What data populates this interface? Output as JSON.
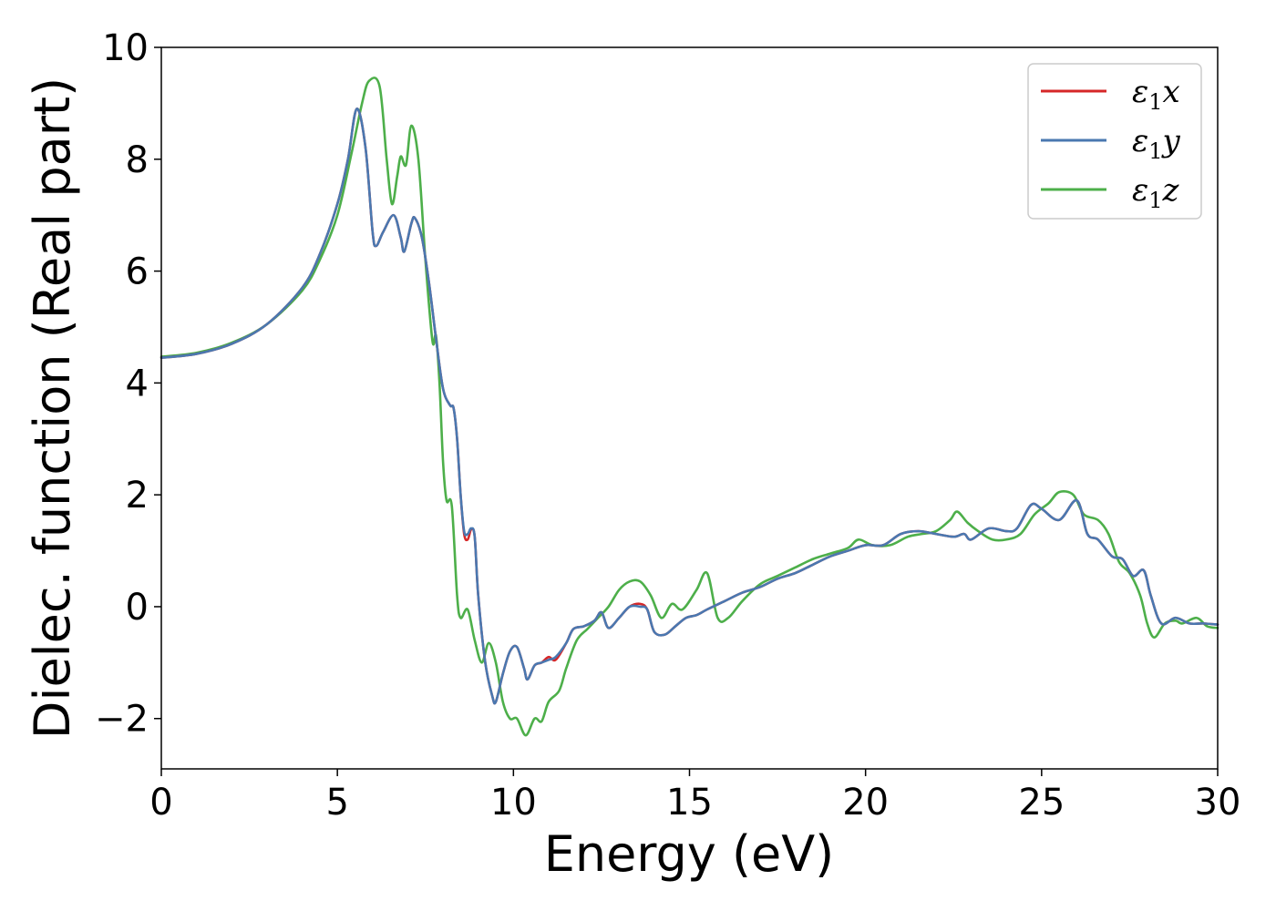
{
  "chart_data": {
    "type": "line",
    "xlabel": "Energy (eV)",
    "ylabel": "Dielec. function (Real part)",
    "xlim": [
      0,
      30
    ],
    "ylim": [
      -2.9,
      10
    ],
    "xticks": [
      0,
      5,
      10,
      15,
      20,
      25,
      30
    ],
    "yticks": [
      -2,
      0,
      2,
      4,
      6,
      8,
      10
    ],
    "xtick_labels": [
      "0",
      "5",
      "10",
      "15",
      "20",
      "25",
      "30"
    ],
    "ytick_labels": [
      "−2",
      "0",
      "2",
      "4",
      "6",
      "8",
      "10"
    ],
    "grid": false,
    "legend_position": "top-right",
    "series": [
      {
        "name": "ε",
        "sub": "1",
        "suffix": "x",
        "color": "#d62728",
        "points": [
          [
            0,
            4.45
          ],
          [
            1,
            4.52
          ],
          [
            2,
            4.7
          ],
          [
            3,
            5.05
          ],
          [
            4,
            5.7
          ],
          [
            4.5,
            6.3
          ],
          [
            5,
            7.2
          ],
          [
            5.3,
            8.0
          ],
          [
            5.55,
            8.9
          ],
          [
            5.8,
            8.2
          ],
          [
            6.0,
            6.7
          ],
          [
            6.1,
            6.45
          ],
          [
            6.3,
            6.7
          ],
          [
            6.6,
            7.0
          ],
          [
            6.8,
            6.6
          ],
          [
            6.9,
            6.35
          ],
          [
            7.1,
            6.85
          ],
          [
            7.2,
            6.95
          ],
          [
            7.4,
            6.6
          ],
          [
            7.6,
            5.8
          ],
          [
            7.8,
            4.8
          ],
          [
            8.0,
            3.9
          ],
          [
            8.2,
            3.6
          ],
          [
            8.3,
            3.55
          ],
          [
            8.4,
            3.0
          ],
          [
            8.5,
            2.0
          ],
          [
            8.6,
            1.3
          ],
          [
            8.7,
            1.2
          ],
          [
            8.8,
            1.38
          ],
          [
            8.9,
            1.25
          ],
          [
            9.0,
            0.2
          ],
          [
            9.2,
            -1.0
          ],
          [
            9.4,
            -1.6
          ],
          [
            9.5,
            -1.7
          ],
          [
            9.7,
            -1.2
          ],
          [
            9.9,
            -0.8
          ],
          [
            10.1,
            -0.72
          ],
          [
            10.3,
            -1.1
          ],
          [
            10.4,
            -1.3
          ],
          [
            10.6,
            -1.05
          ],
          [
            10.8,
            -1.0
          ],
          [
            11.0,
            -0.9
          ],
          [
            11.2,
            -0.95
          ],
          [
            11.5,
            -0.65
          ],
          [
            11.7,
            -0.4
          ],
          [
            12.0,
            -0.35
          ],
          [
            12.3,
            -0.25
          ],
          [
            12.5,
            -0.1
          ],
          [
            12.7,
            -0.38
          ],
          [
            13.0,
            -0.2
          ],
          [
            13.3,
            0.0
          ],
          [
            13.6,
            0.05
          ],
          [
            13.8,
            -0.05
          ],
          [
            14.0,
            -0.45
          ],
          [
            14.3,
            -0.5
          ],
          [
            14.6,
            -0.35
          ],
          [
            14.9,
            -0.2
          ],
          [
            15.2,
            -0.15
          ],
          [
            15.5,
            -0.05
          ],
          [
            16.0,
            0.1
          ],
          [
            16.5,
            0.25
          ],
          [
            17.0,
            0.35
          ],
          [
            17.5,
            0.5
          ],
          [
            18.0,
            0.6
          ],
          [
            18.5,
            0.75
          ],
          [
            19.0,
            0.9
          ],
          [
            19.5,
            1.0
          ],
          [
            20.0,
            1.1
          ],
          [
            20.5,
            1.1
          ],
          [
            21.0,
            1.3
          ],
          [
            21.5,
            1.35
          ],
          [
            22.0,
            1.3
          ],
          [
            22.5,
            1.25
          ],
          [
            22.8,
            1.3
          ],
          [
            23.0,
            1.2
          ],
          [
            23.5,
            1.4
          ],
          [
            24.0,
            1.35
          ],
          [
            24.3,
            1.4
          ],
          [
            24.7,
            1.82
          ],
          [
            25.0,
            1.75
          ],
          [
            25.5,
            1.55
          ],
          [
            26.0,
            1.9
          ],
          [
            26.3,
            1.3
          ],
          [
            26.6,
            1.2
          ],
          [
            27.0,
            0.9
          ],
          [
            27.3,
            0.85
          ],
          [
            27.6,
            0.55
          ],
          [
            27.9,
            0.65
          ],
          [
            28.1,
            0.2
          ],
          [
            28.4,
            -0.3
          ],
          [
            28.8,
            -0.2
          ],
          [
            29.2,
            -0.3
          ],
          [
            29.6,
            -0.3
          ],
          [
            30,
            -0.32
          ]
        ]
      },
      {
        "name": "ε",
        "sub": "1",
        "suffix": "y",
        "color": "#4a78b0",
        "points": [
          [
            0,
            4.45
          ],
          [
            1,
            4.52
          ],
          [
            2,
            4.7
          ],
          [
            3,
            5.05
          ],
          [
            4,
            5.7
          ],
          [
            4.5,
            6.3
          ],
          [
            5,
            7.2
          ],
          [
            5.3,
            8.0
          ],
          [
            5.55,
            8.9
          ],
          [
            5.8,
            8.2
          ],
          [
            6.0,
            6.7
          ],
          [
            6.1,
            6.45
          ],
          [
            6.3,
            6.7
          ],
          [
            6.6,
            7.0
          ],
          [
            6.8,
            6.6
          ],
          [
            6.9,
            6.35
          ],
          [
            7.1,
            6.85
          ],
          [
            7.2,
            6.95
          ],
          [
            7.4,
            6.6
          ],
          [
            7.6,
            5.8
          ],
          [
            7.8,
            4.8
          ],
          [
            8.0,
            3.9
          ],
          [
            8.2,
            3.6
          ],
          [
            8.3,
            3.55
          ],
          [
            8.4,
            3.0
          ],
          [
            8.5,
            2.0
          ],
          [
            8.6,
            1.35
          ],
          [
            8.7,
            1.3
          ],
          [
            8.8,
            1.4
          ],
          [
            8.9,
            1.25
          ],
          [
            9.0,
            0.2
          ],
          [
            9.2,
            -1.0
          ],
          [
            9.4,
            -1.6
          ],
          [
            9.5,
            -1.7
          ],
          [
            9.7,
            -1.2
          ],
          [
            9.9,
            -0.8
          ],
          [
            10.1,
            -0.72
          ],
          [
            10.3,
            -1.1
          ],
          [
            10.4,
            -1.3
          ],
          [
            10.6,
            -1.05
          ],
          [
            10.8,
            -1.0
          ],
          [
            11.0,
            -0.95
          ],
          [
            11.2,
            -0.9
          ],
          [
            11.5,
            -0.65
          ],
          [
            11.7,
            -0.4
          ],
          [
            12.0,
            -0.35
          ],
          [
            12.3,
            -0.25
          ],
          [
            12.5,
            -0.1
          ],
          [
            12.7,
            -0.38
          ],
          [
            13.0,
            -0.2
          ],
          [
            13.3,
            0.0
          ],
          [
            13.6,
            0.0
          ],
          [
            13.8,
            -0.05
          ],
          [
            14.0,
            -0.45
          ],
          [
            14.3,
            -0.5
          ],
          [
            14.6,
            -0.35
          ],
          [
            14.9,
            -0.2
          ],
          [
            15.2,
            -0.15
          ],
          [
            15.5,
            -0.05
          ],
          [
            16.0,
            0.1
          ],
          [
            16.5,
            0.25
          ],
          [
            17.0,
            0.35
          ],
          [
            17.5,
            0.5
          ],
          [
            18.0,
            0.6
          ],
          [
            18.5,
            0.75
          ],
          [
            19.0,
            0.9
          ],
          [
            19.5,
            1.0
          ],
          [
            20.0,
            1.1
          ],
          [
            20.5,
            1.1
          ],
          [
            21.0,
            1.3
          ],
          [
            21.5,
            1.35
          ],
          [
            22.0,
            1.3
          ],
          [
            22.5,
            1.25
          ],
          [
            22.8,
            1.3
          ],
          [
            23.0,
            1.2
          ],
          [
            23.5,
            1.4
          ],
          [
            24.0,
            1.35
          ],
          [
            24.3,
            1.4
          ],
          [
            24.7,
            1.82
          ],
          [
            25.0,
            1.75
          ],
          [
            25.5,
            1.55
          ],
          [
            26.0,
            1.9
          ],
          [
            26.3,
            1.3
          ],
          [
            26.6,
            1.2
          ],
          [
            27.0,
            0.9
          ],
          [
            27.3,
            0.85
          ],
          [
            27.6,
            0.55
          ],
          [
            27.9,
            0.65
          ],
          [
            28.1,
            0.2
          ],
          [
            28.4,
            -0.3
          ],
          [
            28.8,
            -0.2
          ],
          [
            29.2,
            -0.3
          ],
          [
            29.6,
            -0.3
          ],
          [
            30,
            -0.32
          ]
        ]
      },
      {
        "name": "ε",
        "sub": "1",
        "suffix": "z",
        "color": "#4daf4a",
        "points": [
          [
            0,
            4.47
          ],
          [
            1,
            4.54
          ],
          [
            2,
            4.72
          ],
          [
            3,
            5.05
          ],
          [
            4,
            5.65
          ],
          [
            4.5,
            6.2
          ],
          [
            5,
            7.0
          ],
          [
            5.4,
            8.1
          ],
          [
            5.7,
            9.0
          ],
          [
            5.9,
            9.4
          ],
          [
            6.2,
            9.3
          ],
          [
            6.4,
            8.0
          ],
          [
            6.55,
            7.2
          ],
          [
            6.7,
            7.7
          ],
          [
            6.8,
            8.05
          ],
          [
            6.95,
            7.9
          ],
          [
            7.1,
            8.6
          ],
          [
            7.3,
            8.0
          ],
          [
            7.5,
            6.2
          ],
          [
            7.7,
            4.75
          ],
          [
            7.8,
            4.85
          ],
          [
            7.9,
            4.0
          ],
          [
            8.0,
            2.6
          ],
          [
            8.1,
            1.9
          ],
          [
            8.25,
            1.8
          ],
          [
            8.4,
            0.2
          ],
          [
            8.5,
            -0.2
          ],
          [
            8.7,
            -0.05
          ],
          [
            8.9,
            -0.6
          ],
          [
            9.1,
            -1.0
          ],
          [
            9.3,
            -0.65
          ],
          [
            9.5,
            -1.0
          ],
          [
            9.7,
            -1.7
          ],
          [
            9.9,
            -2.0
          ],
          [
            10.1,
            -2.0
          ],
          [
            10.35,
            -2.3
          ],
          [
            10.6,
            -2.0
          ],
          [
            10.8,
            -2.05
          ],
          [
            11.0,
            -1.7
          ],
          [
            11.3,
            -1.5
          ],
          [
            11.5,
            -1.1
          ],
          [
            11.8,
            -0.6
          ],
          [
            12.1,
            -0.4
          ],
          [
            12.4,
            -0.2
          ],
          [
            12.7,
            0.0
          ],
          [
            13.0,
            0.3
          ],
          [
            13.3,
            0.45
          ],
          [
            13.6,
            0.45
          ],
          [
            13.9,
            0.2
          ],
          [
            14.2,
            -0.2
          ],
          [
            14.5,
            0.05
          ],
          [
            14.8,
            -0.05
          ],
          [
            15.2,
            0.3
          ],
          [
            15.5,
            0.6
          ],
          [
            15.8,
            -0.2
          ],
          [
            16.1,
            -0.2
          ],
          [
            16.5,
            0.1
          ],
          [
            17.0,
            0.4
          ],
          [
            17.5,
            0.55
          ],
          [
            18.0,
            0.7
          ],
          [
            18.5,
            0.85
          ],
          [
            19.0,
            0.95
          ],
          [
            19.5,
            1.05
          ],
          [
            19.8,
            1.2
          ],
          [
            20.2,
            1.1
          ],
          [
            20.7,
            1.1
          ],
          [
            21.2,
            1.25
          ],
          [
            21.6,
            1.3
          ],
          [
            22.0,
            1.35
          ],
          [
            22.4,
            1.55
          ],
          [
            22.6,
            1.7
          ],
          [
            22.9,
            1.5
          ],
          [
            23.2,
            1.35
          ],
          [
            23.6,
            1.2
          ],
          [
            24.0,
            1.2
          ],
          [
            24.4,
            1.3
          ],
          [
            24.8,
            1.65
          ],
          [
            25.2,
            1.85
          ],
          [
            25.5,
            2.05
          ],
          [
            25.9,
            2.0
          ],
          [
            26.2,
            1.65
          ],
          [
            26.6,
            1.55
          ],
          [
            26.9,
            1.3
          ],
          [
            27.2,
            0.8
          ],
          [
            27.5,
            0.6
          ],
          [
            27.8,
            0.2
          ],
          [
            28.0,
            -0.3
          ],
          [
            28.2,
            -0.55
          ],
          [
            28.5,
            -0.3
          ],
          [
            28.8,
            -0.25
          ],
          [
            29.0,
            -0.3
          ],
          [
            29.4,
            -0.2
          ],
          [
            29.7,
            -0.35
          ],
          [
            30,
            -0.38
          ]
        ]
      }
    ]
  }
}
